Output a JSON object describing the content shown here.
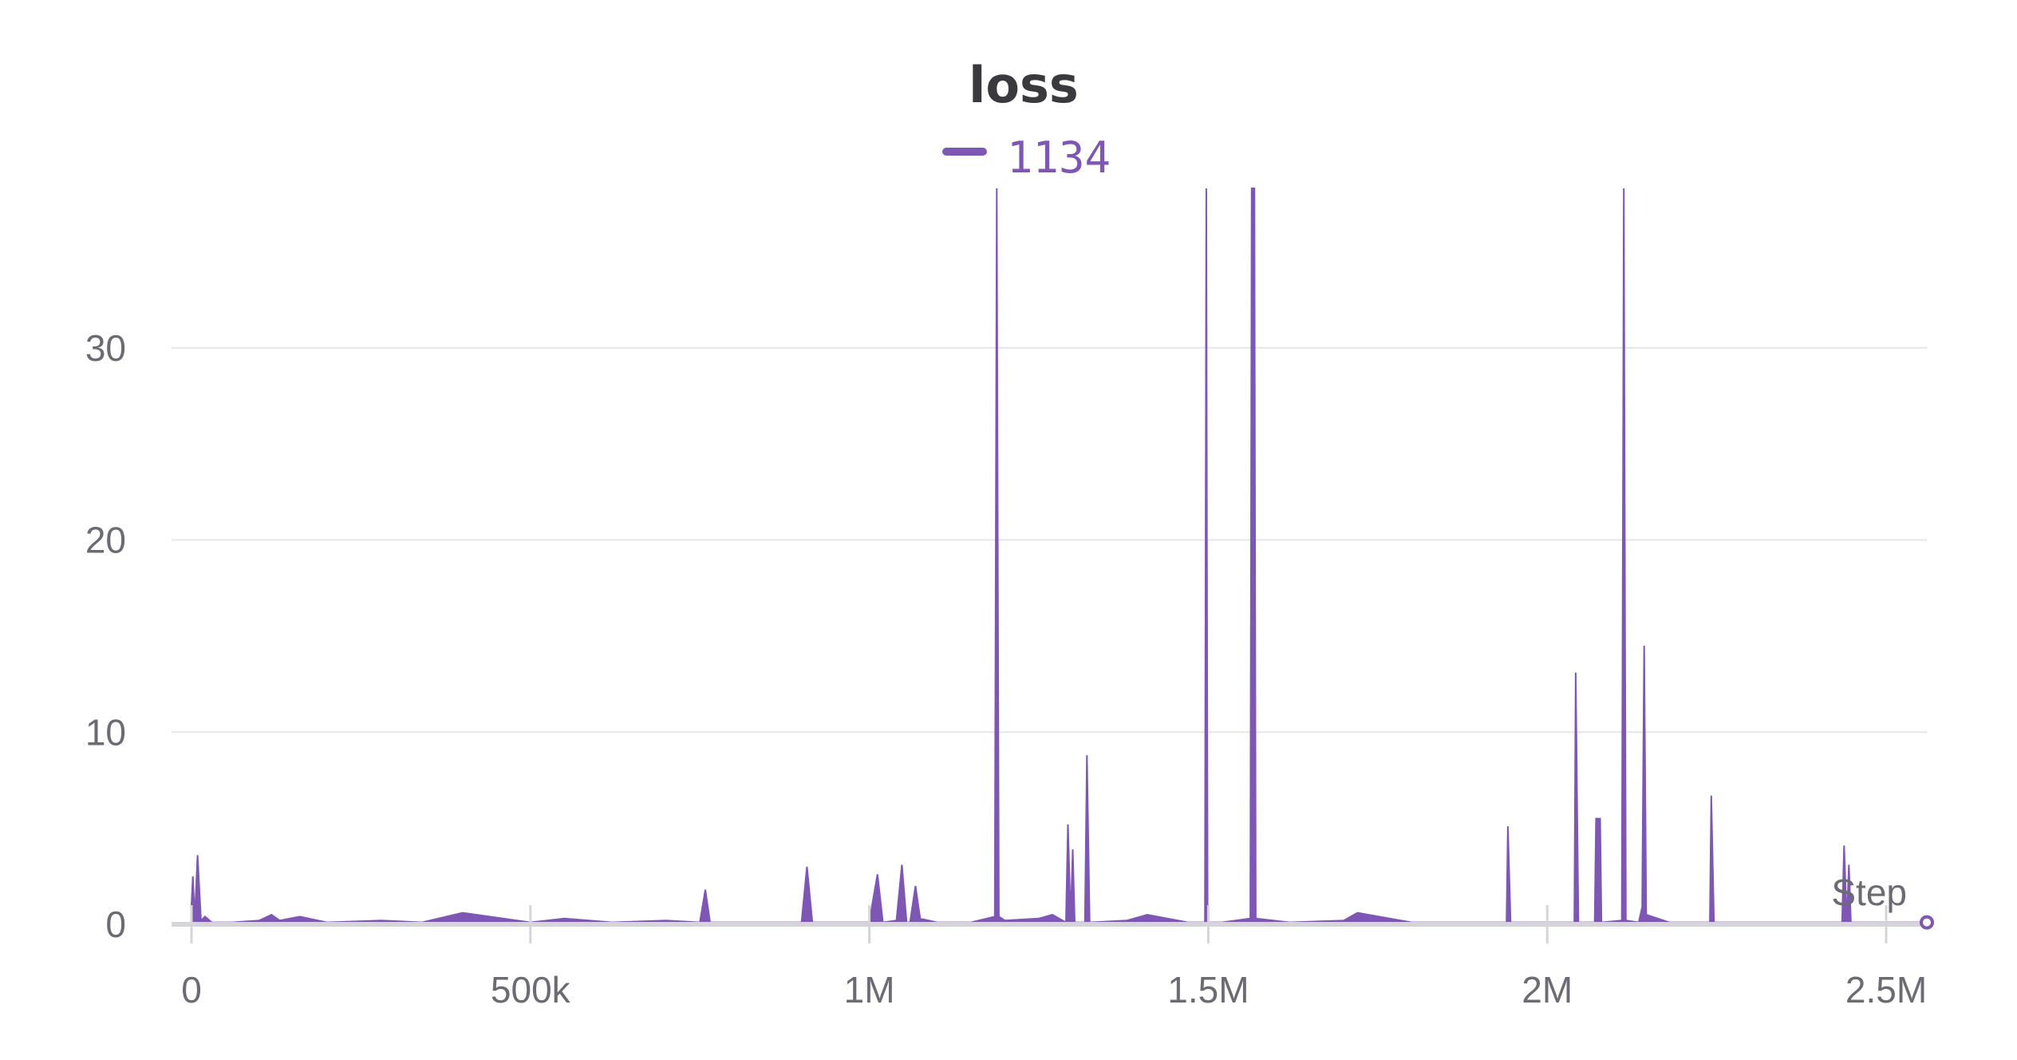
{
  "chart_data": {
    "type": "line",
    "title": "loss",
    "xlabel": "Step",
    "ylabel": "",
    "legend_placement": "top-center",
    "grid": true,
    "color": "#7e57b4",
    "xlim": [
      0,
      2560000
    ],
    "ylim": [
      0,
      38.3
    ],
    "xticks": [
      0,
      500000,
      1000000,
      1500000,
      2000000,
      2500000
    ],
    "xtick_labels": [
      "0",
      "500k",
      "1M",
      "1.5M",
      "2M",
      "2.5M"
    ],
    "yticks": [
      0,
      10,
      20,
      30
    ],
    "ytick_labels": [
      "0",
      "10",
      "20",
      "30"
    ],
    "series": [
      {
        "name": "1134",
        "x": [
          0,
          2000,
          5000,
          9000,
          14000,
          20000,
          30000,
          60000,
          100000,
          118000,
          130000,
          160000,
          200000,
          280000,
          340000,
          400000,
          500000,
          550000,
          620000,
          700000,
          750000,
          758000,
          765000,
          800000,
          880000,
          900000,
          908000,
          916000,
          960000,
          1000000,
          1005000,
          1012000,
          1020000,
          1040000,
          1048000,
          1055000,
          1060000,
          1068000,
          1075000,
          1100000,
          1150000,
          1185000,
          1188000,
          1191000,
          1200000,
          1250000,
          1270000,
          1290000,
          1293000,
          1297000,
          1300000,
          1303000,
          1308000,
          1318000,
          1321000,
          1325000,
          1380000,
          1410000,
          1470000,
          1495000,
          1497000,
          1499000,
          1520000,
          1562000,
          1564000,
          1566000,
          1568000,
          1570000,
          1620000,
          1700000,
          1720000,
          1800000,
          1900000,
          1940000,
          1942000,
          1946000,
          2000000,
          2040000,
          2042000,
          2046000,
          2070000,
          2072000,
          2078000,
          2080000,
          2110000,
          2113000,
          2116000,
          2135000,
          2140000,
          2143000,
          2146000,
          2180000,
          2240000,
          2242000,
          2246000,
          2300000,
          2400000,
          2435000,
          2438000,
          2442000,
          2445000,
          2448000,
          2500000,
          2560000
        ],
        "y": [
          1.0,
          2.5,
          0.3,
          3.6,
          0.2,
          0.4,
          0.1,
          0.1,
          0.2,
          0.5,
          0.2,
          0.4,
          0.1,
          0.2,
          0.1,
          0.6,
          0.1,
          0.3,
          0.1,
          0.2,
          0.1,
          1.8,
          0.1,
          0.1,
          0.1,
          0.1,
          3.0,
          0.1,
          0.1,
          0.1,
          1.2,
          2.6,
          0.1,
          0.2,
          3.1,
          0.1,
          0.1,
          2.0,
          0.3,
          0.1,
          0.1,
          0.4,
          38.3,
          0.4,
          0.2,
          0.3,
          0.5,
          0.1,
          5.2,
          0.2,
          3.9,
          0.1,
          0.1,
          0.1,
          8.8,
          0.1,
          0.2,
          0.5,
          0.1,
          0.1,
          38.3,
          0.1,
          0.1,
          0.3,
          38.3,
          38.3,
          38.3,
          0.3,
          0.1,
          0.2,
          0.6,
          0.1,
          0.1,
          0.1,
          5.1,
          0.1,
          0.1,
          0.1,
          13.1,
          0.1,
          0.1,
          5.5,
          5.5,
          0.1,
          0.2,
          38.3,
          0.2,
          0.1,
          0.9,
          14.5,
          0.5,
          0.1,
          0.1,
          6.7,
          0.1,
          0.1,
          0.1,
          0.1,
          4.1,
          0.1,
          3.1,
          0.1,
          0.1,
          0.1
        ]
      }
    ]
  }
}
